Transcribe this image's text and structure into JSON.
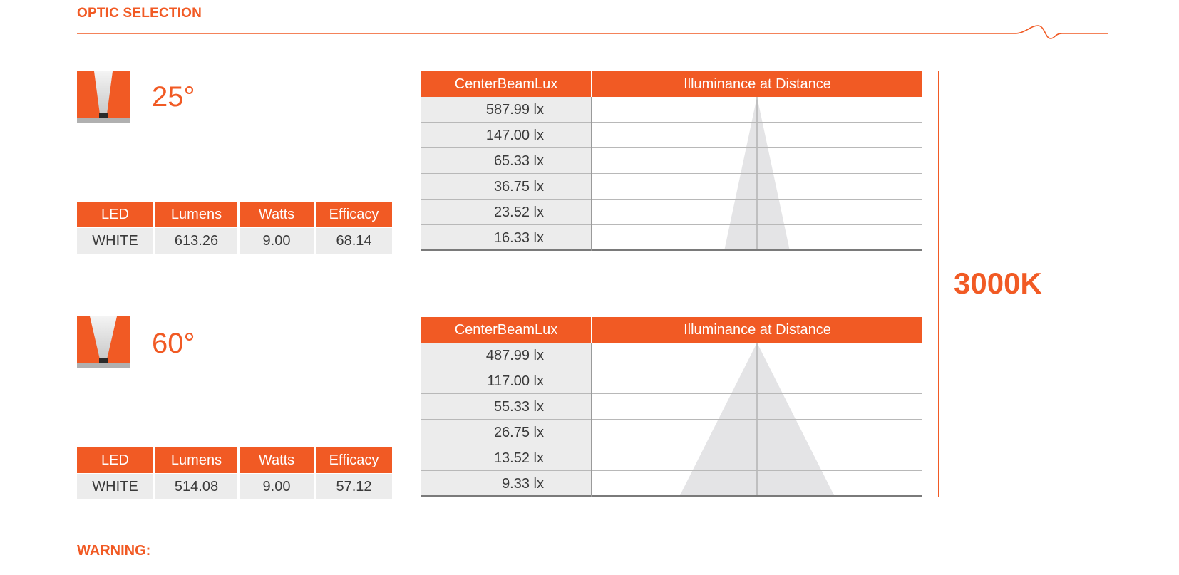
{
  "section_title": "OPTIC SELECTION",
  "colors": {
    "accent": "#f15a24",
    "cell_bg": "#ececec",
    "beam": "#e4e4e6"
  },
  "optics": [
    {
      "angle": "25°",
      "spec_headers": [
        "LED",
        "Lumens",
        "Watts",
        "Efficacy"
      ],
      "spec_row": [
        "WHITE",
        "613.26",
        "9.00",
        "68.14"
      ],
      "lux_headers": [
        "CenterBeamLux",
        "Illuminance at Distance"
      ],
      "lux_values": [
        "587.99 lx",
        "147.00 lx",
        "65.33 lx",
        "36.75 lx",
        "23.52 lx",
        "16.33 lx"
      ]
    },
    {
      "angle": "60°",
      "spec_headers": [
        "LED",
        "Lumens",
        "Watts",
        "Efficacy"
      ],
      "spec_row": [
        "WHITE",
        "514.08",
        "9.00",
        "57.12"
      ],
      "lux_headers": [
        "CenterBeamLux",
        "Illuminance at Distance"
      ],
      "lux_values": [
        "487.99 lx",
        "117.00 lx",
        "55.33 lx",
        "26.75 lx",
        "13.52 lx",
        "9.33 lx"
      ]
    }
  ],
  "cct": "3000K",
  "warning_label": "WARNING:"
}
